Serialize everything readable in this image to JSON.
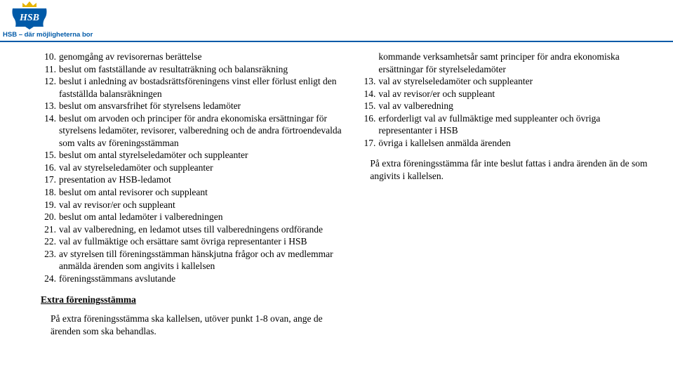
{
  "logo": {
    "brand_box_color": "#005aa8",
    "gold_color": "#e8b400",
    "letters": "HSB",
    "tagline": "HSB – där möjligheterna bor"
  },
  "left_list_start": 10,
  "left_list": [
    "genomgång av revisorernas berättelse",
    "beslut om fastställande av resultaträkning och balansräkning",
    "beslut i anledning av bostadsrättsföreningens vinst eller förlust enligt den fastställda balansräkningen",
    "beslut om ansvarsfrihet för styrelsens ledamöter",
    "beslut om arvoden och principer för andra ekonomiska ersättningar för styrelsens ledamöter, revisorer, valberedning och de andra förtroendevalda som valts av föreningsstämman",
    "beslut om antal styrelseledamöter och suppleanter",
    "val av styrelseledamöter och suppleanter",
    "presentation av HSB-ledamot",
    "beslut om antal revisorer och suppleant",
    "val av revisor/er och suppleant",
    "beslut om antal ledamöter i valberedningen",
    "val av valberedning, en ledamot utses till valberedningens ordförande",
    "val av fullmäktige och ersättare samt övriga representanter i HSB",
    "av styrelsen till föreningsstämman hänskjutna frågor och av medlemmar anmälda ärenden som angivits i kallelsen",
    "föreningsstämmans avslutande"
  ],
  "right_intro": "kommande verksamhetsår samt principer för andra ekonomiska ersättningar för styrelseledamöter",
  "right_list_start": 13,
  "right_list": [
    "val av styrelseledamöter och suppleanter",
    "val av revisor/er och suppleant",
    "val av valberedning",
    "erforderligt val av fullmäktige med suppleanter och övriga representanter i HSB",
    "övriga i kallelsen anmälda ärenden"
  ],
  "right_para": "På extra föreningsstämma får inte beslut fattas i andra ärenden än de som angivits i kallelsen.",
  "extra_title": "Extra föreningsstämma",
  "extra_para": "På extra föreningsstämma ska kallelsen, utöver punkt 1-8 ovan, ange de ärenden som ska behandlas.",
  "colors": {
    "brand_blue": "#005aa8",
    "text": "#000000",
    "bg": "#ffffff"
  }
}
